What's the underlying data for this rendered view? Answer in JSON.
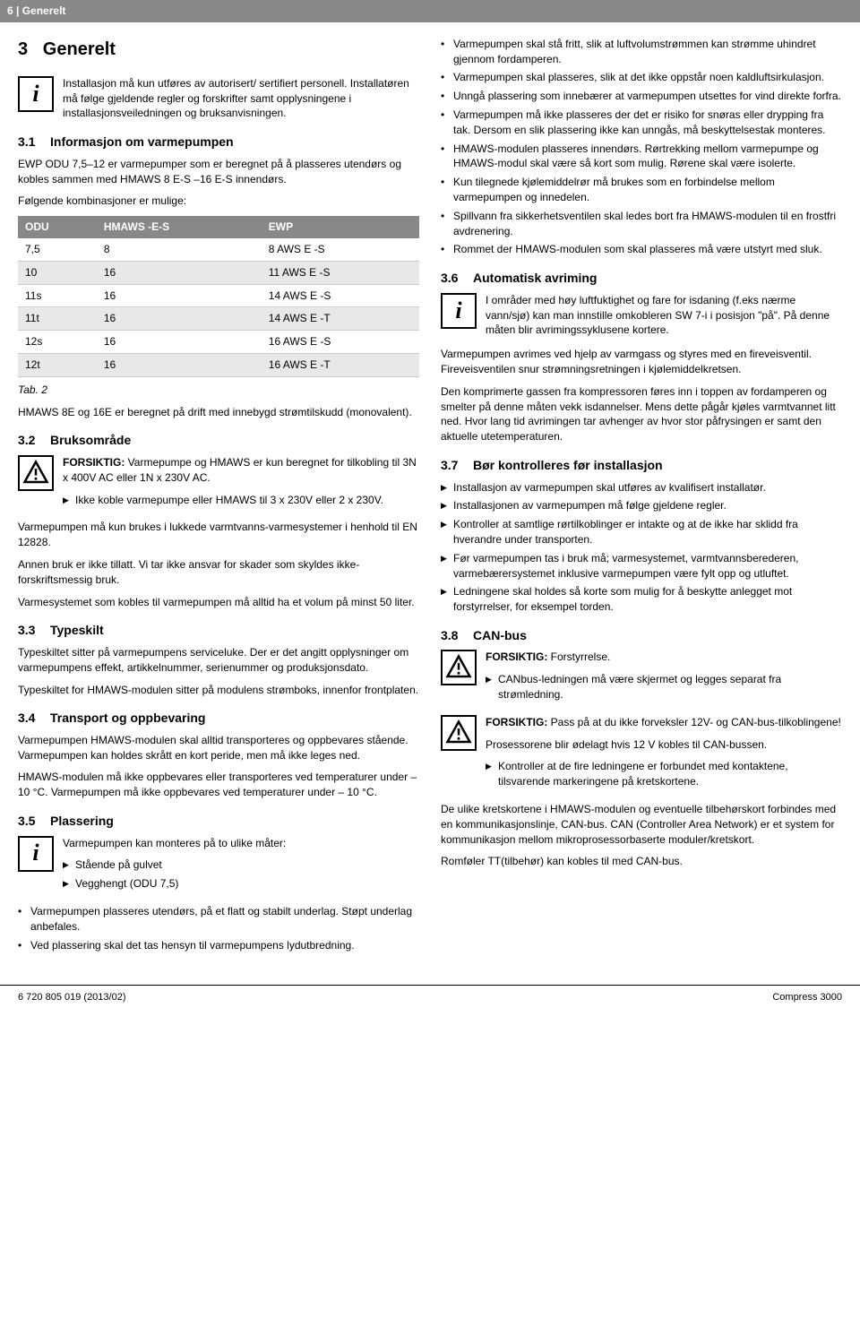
{
  "header": {
    "page_num": "6",
    "breadcrumb": "Generelt"
  },
  "left": {
    "h1_num": "3",
    "h1": "Generelt",
    "intro": "Installasjon må kun utføres av autorisert/ sertifiert personell. Installatøren må følge gjeldende regler og forskrifter samt opplysningene i installasjonsveiledningen og bruksanvisningen.",
    "s31_num": "3.1",
    "s31_title": "Informasjon om varmepumpen",
    "s31_p1": "EWP ODU 7,5–12 er varmepumper som er beregnet på å plasseres utendørs og kobles sammen med HMAWS 8 E-S –16 E-S innendørs.",
    "s31_p2": "Følgende kombinasjoner er mulige:",
    "table": {
      "cols": [
        "ODU",
        "HMAWS -E-S",
        "EWP"
      ],
      "rows": [
        [
          "7,5",
          "8",
          "8 AWS E -S"
        ],
        [
          "10",
          "16",
          "11 AWS E -S"
        ],
        [
          "11s",
          "16",
          "14 AWS E -S"
        ],
        [
          "11t",
          "16",
          "14 AWS E -T"
        ],
        [
          "12s",
          "16",
          "16 AWS E -S"
        ],
        [
          "12t",
          "16",
          "16 AWS E -T"
        ]
      ],
      "caption": "Tab. 2"
    },
    "s31_p3": "HMAWS 8E og 16E er beregnet på drift med innebygd strømtilskudd (monovalent).",
    "s32_num": "3.2",
    "s32_title": "Bruksområde",
    "s32_warn_label": "FORSIKTIG:",
    "s32_warn_body": " Varmepumpe og HMAWS er kun beregnet for tilkobling til 3N x 400V AC eller 1N x 230V AC.",
    "s32_warn_li": "Ikke koble varmepumpe eller HMAWS til 3 x 230V eller 2 x 230V.",
    "s32_p1": "Varmepumpen må kun brukes i lukkede varmtvanns-varmesystemer i henhold til EN 12828.",
    "s32_p2": "Annen bruk er ikke tillatt. Vi tar ikke ansvar for skader som skyldes ikke-forskriftsmessig bruk.",
    "s32_p3": "Varmesystemet som kobles til varmepumpen må alltid ha et volum på minst 50 liter.",
    "s33_num": "3.3",
    "s33_title": "Typeskilt",
    "s33_p1": "Typeskiltet sitter på varmepumpens serviceluke. Der er det angitt opplysninger om varmepumpens effekt, artikkelnummer, serienummer og produksjonsdato.",
    "s33_p2": "Typeskiltet for HMAWS-modulen sitter på modulens strømboks, innenfor frontplaten.",
    "s34_num": "3.4",
    "s34_title": "Transport og oppbevaring",
    "s34_p1": "Varmepumpen HMAWS-modulen skal alltid transporteres og oppbevares stående. Varmepumpen kan holdes skrått en kort peride, men må ikke leges ned.",
    "s34_p2": "HMAWS-modulen må ikke oppbevares eller transporteres ved temperaturer under  – 10 °C. Varmepumpen må ikke oppbevares ved temperaturer under  – 10 °C.",
    "s35_num": "3.5",
    "s35_title": "Plassering",
    "s35_info_p": "Varmepumpen kan monteres på to ulike måter:",
    "s35_info_li1": "Stående på gulvet",
    "s35_info_li2": "Vegghengt (ODU 7,5)",
    "s35_li1": "Varmepumpen plasseres utendørs, på et flatt og stabilt underlag. Støpt underlag anbefales.",
    "s35_li2": "Ved plassering skal det tas hensyn til varmepumpens lydutbredning."
  },
  "right": {
    "top_bullets": [
      "Varmepumpen skal stå fritt, slik at luftvolumstrømmen kan strømme uhindret gjennom fordamperen.",
      "Varmepumpen skal plasseres, slik at det ikke oppstår noen kaldluftsirkulasjon.",
      "Unngå plassering som innebærer at varmepumpen utsettes for vind direkte forfra.",
      "Varmepumpen må ikke plasseres der det er risiko for snøras eller drypping fra tak. Dersom en slik plassering ikke kan unngås, må beskyttelsestak monteres.",
      "HMAWS-modulen plasseres innendørs. Rørtrekking mellom varmepumpe og HMAWS-modul skal være så kort som mulig. Rørene skal være isolerte.",
      "Kun tilegnede kjølemiddelrør må brukes som en forbindelse mellom varmepumpen og innedelen.",
      "Spillvann fra sikkerhetsventilen skal ledes bort fra HMAWS-modulen til en frostfri avdrenering.",
      "Rommet der HMAWS-modulen som skal plasseres må være utstyrt med sluk."
    ],
    "s36_num": "3.6",
    "s36_title": "Automatisk avriming",
    "s36_info": "I områder med høy luftfuktighet og fare for isdaning (f.eks nærme vann/sjø) kan man innstille omkobleren SW 7-i i posisjon \"på\". På denne måten blir avrimingssyklusene kortere.",
    "s36_p1": "Varmepumpen avrimes ved hjelp av varmgass og styres med en fireveisventil. Fireveisventilen snur strømningsretningen i kjølemiddelkretsen.",
    "s36_p2": "Den komprimerte gassen fra kompressoren føres inn i toppen av fordamperen og smelter på denne måten vekk isdannelser. Mens dette pågår kjøles varmtvannet litt ned. Hvor lang tid avrimingen tar avhenger av hvor stor påfrysingen er samt den aktuelle utetemperaturen.",
    "s37_num": "3.7",
    "s37_title": "Bør kontrolleres før installasjon",
    "s37_li": [
      "Installasjon av varmepumpen skal utføres av kvalifisert installatør.",
      "Installasjonen av varmepumpen må følge gjeldene regler.",
      "Kontroller at samtlige rørtilkoblinger er intakte og at de ikke har sklidd fra hverandre under transporten.",
      "Før varmepumpen tas i bruk må;  varmesystemet, varmtvannsberederen, varmebærersystemet inklusive varmepumpen være fylt opp og utluftet.",
      "Ledningene skal holdes så korte som mulig for å beskytte anlegget mot forstyrrelser, for eksempel torden."
    ],
    "s38_num": "3.8",
    "s38_title": "CAN-bus",
    "s38_w1_label": "FORSIKTIG:",
    "s38_w1_body": " Forstyrrelse.",
    "s38_w1_li": "CANbus-ledningen må være skjermet og legges separat fra strømledning.",
    "s38_w2_label": "FORSIKTIG:",
    "s38_w2_body": " Pass på at du ikke forveksler 12V- og CAN-bus-tilkoblingene!",
    "s38_w2_p": "Prosessorene blir ødelagt hvis 12 V kobles til CAN-bussen.",
    "s38_w2_li": "Kontroller at de fire ledningene er forbundet med kontaktene, tilsvarende markeringene på kretskortene.",
    "s38_p1": "De ulike kretskortene i HMAWS-modulen og eventuelle tilbehørskort forbindes med en kommunikasjonslinje, CAN-bus. CAN (Controller Area Network) er et system for kommunikasjon mellom mikroprosessorbaserte moduler/kretskort.",
    "s38_p2": "Romføler TT(tilbehør) kan kobles til med CAN-bus."
  },
  "footer": {
    "left": "6 720 805 019 (2013/02)",
    "right": "Compress 3000"
  }
}
